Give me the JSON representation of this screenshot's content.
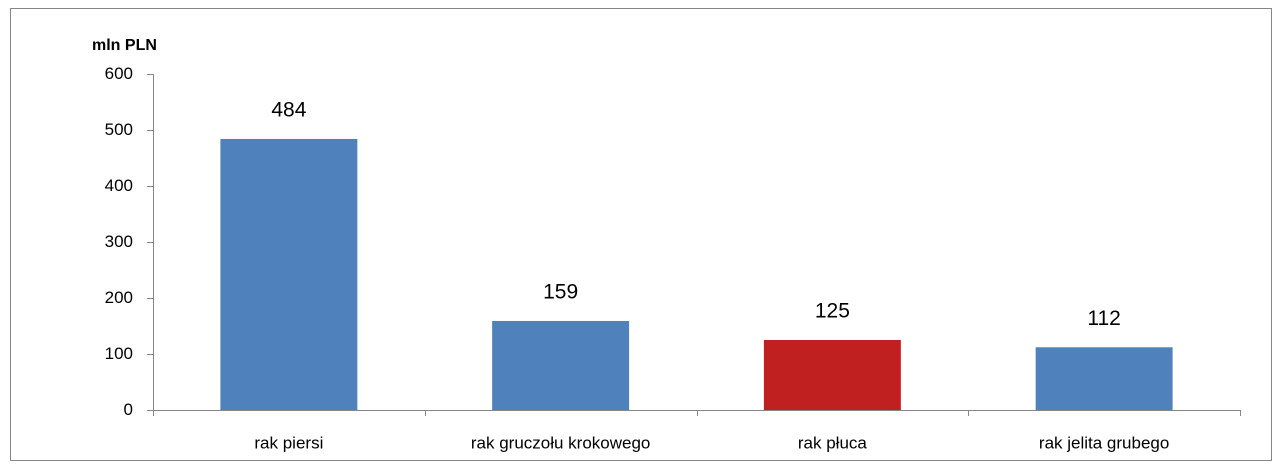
{
  "chart_data": {
    "type": "bar",
    "y_axis_label": "mln PLN",
    "categories": [
      "rak piersi",
      "rak gruczołu krokowego",
      "rak płuca",
      "rak jelita grubego"
    ],
    "values": [
      484,
      159,
      125,
      112
    ],
    "colors": [
      "#4f81bd",
      "#4f81bd",
      "#c0201f",
      "#4f81bd"
    ],
    "ylim": [
      0,
      600
    ],
    "yticks": [
      0,
      100,
      200,
      300,
      400,
      500,
      600
    ],
    "grid": false,
    "data_labels": true
  }
}
